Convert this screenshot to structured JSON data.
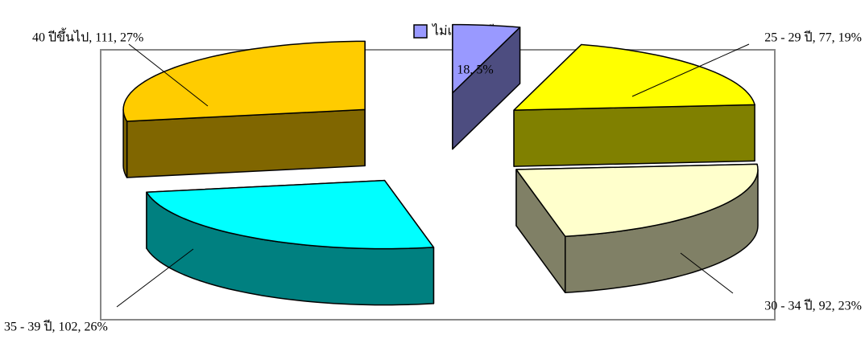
{
  "chart_data": {
    "type": "pie",
    "categories": [
      "ไม่เกิน 25 ปี",
      "25 - 29 ปี",
      "30 - 34 ปี",
      "35 - 39 ปี",
      "40 ปีขึ้นไป"
    ],
    "values": [
      18,
      77,
      92,
      102,
      111
    ],
    "value_labels": [
      "18, 5%",
      "25 - 29 ปี, 77, 19%",
      "30 - 34 ปี, 92, 23%",
      "35 - 39 ปี, 102, 26%",
      "40 ปีขึ้นไป, 111, 27%"
    ],
    "colors": [
      "#9999ff",
      "#ffff00",
      "#ffffcc",
      "#00ffff",
      "#ffcc00"
    ],
    "legend": [
      "ไม่เกิน 25 ปี,"
    ]
  }
}
